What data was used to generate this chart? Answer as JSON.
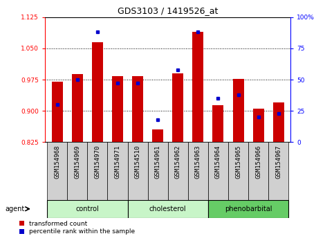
{
  "title": "GDS3103 / 1419526_at",
  "samples": [
    "GSM154968",
    "GSM154969",
    "GSM154970",
    "GSM154971",
    "GSM154510",
    "GSM154961",
    "GSM154962",
    "GSM154963",
    "GSM154964",
    "GSM154965",
    "GSM154966",
    "GSM154967"
  ],
  "transformed_count": [
    0.97,
    0.988,
    1.065,
    0.983,
    0.983,
    0.855,
    0.99,
    1.09,
    0.913,
    0.977,
    0.905,
    0.92
  ],
  "percentile_rank": [
    30,
    50,
    88,
    47,
    47,
    18,
    58,
    88,
    35,
    38,
    20,
    23
  ],
  "group_info": [
    {
      "label": "control",
      "start": 0,
      "end": 4,
      "color": "#c8f5c8"
    },
    {
      "label": "cholesterol",
      "start": 4,
      "end": 8,
      "color": "#c8f5c8"
    },
    {
      "label": "phenobarbital",
      "start": 8,
      "end": 12,
      "color": "#66cc66"
    }
  ],
  "ylim_left": [
    0.825,
    1.125
  ],
  "ylim_right": [
    0,
    100
  ],
  "yticks_left": [
    0.825,
    0.9,
    0.975,
    1.05,
    1.125
  ],
  "yticks_right": [
    0,
    25,
    50,
    75,
    100
  ],
  "bar_color": "#cc0000",
  "percentile_color": "#0000cc",
  "base": 0.825,
  "bar_width": 0.55,
  "background_color": "#ffffff",
  "plot_bg": "#ffffff",
  "tick_bg": "#d0d0d0",
  "gridline_color": "#000000",
  "title_fontsize": 9,
  "tick_fontsize": 6.5,
  "label_fontsize": 6.5,
  "group_fontsize": 7
}
